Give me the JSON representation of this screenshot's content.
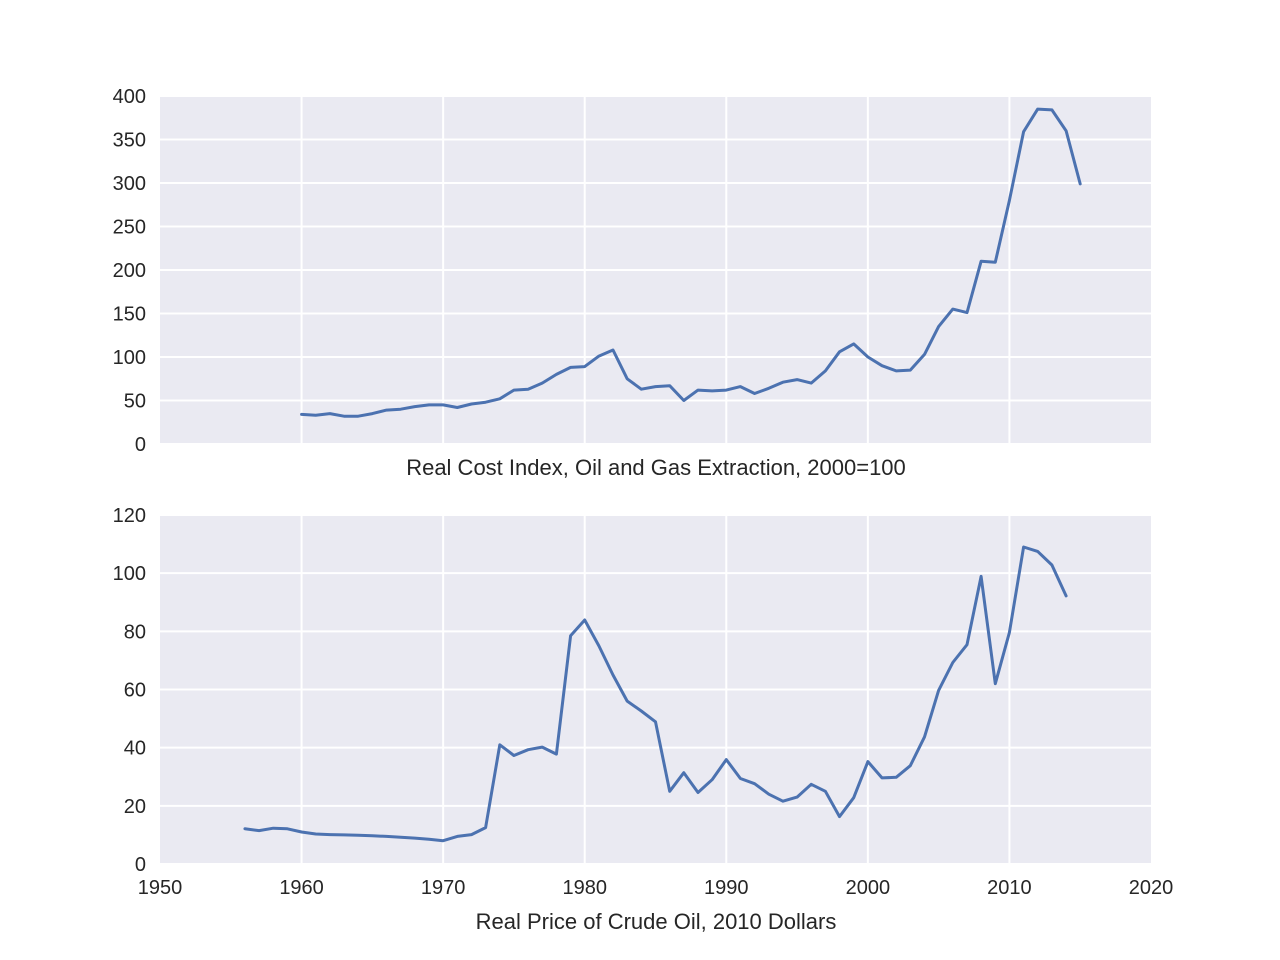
{
  "chart_data": [
    {
      "type": "line",
      "xlabel": "Real Cost Index, Oil and Gas Extraction, 2000=100",
      "ylabel": "",
      "xlim": [
        1950,
        2020
      ],
      "ylim": [
        0,
        400
      ],
      "grid": true,
      "yticks": [
        0,
        50,
        100,
        150,
        200,
        250,
        300,
        350,
        400
      ],
      "xticks": [
        1960,
        1970,
        1980,
        1990,
        2000,
        2010
      ],
      "show_x_tick_labels": false,
      "color": "#4c72b0",
      "x": [
        1960,
        1961,
        1962,
        1963,
        1964,
        1965,
        1966,
        1967,
        1968,
        1969,
        1970,
        1971,
        1972,
        1973,
        1974,
        1975,
        1976,
        1977,
        1978,
        1979,
        1980,
        1981,
        1982,
        1983,
        1984,
        1985,
        1986,
        1987,
        1988,
        1989,
        1990,
        1991,
        1992,
        1993,
        1994,
        1995,
        1996,
        1997,
        1998,
        1999,
        2000,
        2001,
        2002,
        2003,
        2004,
        2005,
        2006,
        2007,
        2008,
        2009,
        2010,
        2011,
        2012,
        2013,
        2014,
        2015
      ],
      "y": [
        34,
        33,
        35,
        32,
        32,
        35,
        39,
        40,
        43,
        45,
        45,
        42,
        46,
        48,
        52,
        62,
        63,
        70,
        80,
        88,
        89,
        101,
        108,
        75,
        63,
        66,
        67,
        50,
        62,
        61,
        62,
        66,
        58,
        64,
        71,
        74,
        70,
        84,
        106,
        115,
        100,
        90,
        84,
        85,
        103,
        135,
        155,
        151,
        210,
        209,
        280,
        359,
        385,
        384,
        360,
        299
      ]
    },
    {
      "type": "line",
      "xlabel": "Real Price of Crude Oil, 2010 Dollars",
      "ylabel": "",
      "xlim": [
        1950,
        2020
      ],
      "ylim": [
        0,
        120
      ],
      "grid": true,
      "yticks": [
        0,
        20,
        40,
        60,
        80,
        100,
        120
      ],
      "xticks": [
        1950,
        1960,
        1970,
        1980,
        1990,
        2000,
        2010,
        2020
      ],
      "show_x_tick_labels": true,
      "color": "#4c72b0",
      "x": [
        1956,
        1957,
        1958,
        1959,
        1960,
        1961,
        1962,
        1963,
        1964,
        1965,
        1966,
        1967,
        1968,
        1969,
        1970,
        1971,
        1972,
        1973,
        1974,
        1975,
        1976,
        1977,
        1978,
        1979,
        1980,
        1981,
        1982,
        1983,
        1984,
        1985,
        1986,
        1987,
        1988,
        1989,
        1990,
        1991,
        1992,
        1993,
        1994,
        1995,
        1996,
        1997,
        1998,
        1999,
        2000,
        2001,
        2002,
        2003,
        2004,
        2005,
        2006,
        2007,
        2008,
        2009,
        2010,
        2011,
        2012,
        2013,
        2014
      ],
      "y": [
        12.1,
        11.5,
        12.3,
        12.1,
        11,
        10.3,
        10.1,
        10,
        9.9,
        9.7,
        9.5,
        9.2,
        8.9,
        8.5,
        8.0,
        9.5,
        10.1,
        12.5,
        41,
        37.3,
        39.3,
        40.2,
        37.8,
        78.5,
        83.9,
        75,
        65,
        56,
        52.6,
        48.9,
        25,
        31.4,
        24.6,
        29,
        35.9,
        29.4,
        27.6,
        24,
        21.6,
        23,
        27.4,
        25,
        16.3,
        22.8,
        35.2,
        29.6,
        29.8,
        33.8,
        43.7,
        59.7,
        69.3,
        75.4,
        98.9,
        62,
        79.6,
        109,
        107.5,
        102.8,
        92.2
      ]
    }
  ]
}
